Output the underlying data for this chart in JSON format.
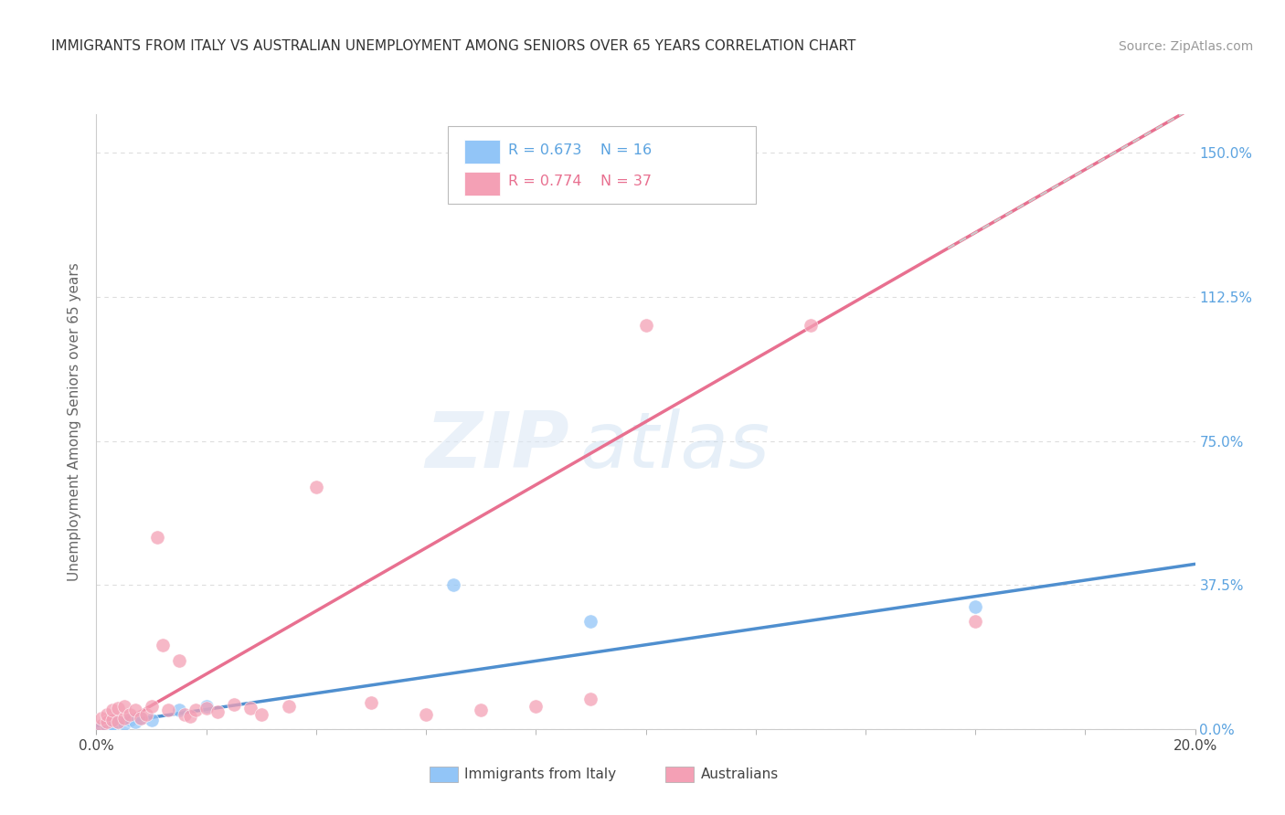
{
  "title": "IMMIGRANTS FROM ITALY VS AUSTRALIAN UNEMPLOYMENT AMONG SENIORS OVER 65 YEARS CORRELATION CHART",
  "source": "Source: ZipAtlas.com",
  "ylabel": "Unemployment Among Seniors over 65 years",
  "xlim": [
    0.0,
    0.2
  ],
  "ylim": [
    0.0,
    1.6
  ],
  "xtick_labels": [
    "0.0%",
    "20.0%"
  ],
  "ytick_labels_right": [
    "0.0%",
    "37.5%",
    "75.0%",
    "112.5%",
    "150.0%"
  ],
  "ytick_vals_right": [
    0.0,
    0.375,
    0.75,
    1.125,
    1.5
  ],
  "legend_label1": "Immigrants from Italy",
  "legend_label2": "Australians",
  "r1": 0.673,
  "n1": 16,
  "r2": 0.774,
  "n2": 37,
  "color1": "#92c5f7",
  "color2": "#f4a0b5",
  "trendline1_color": "#4f8fcf",
  "trendline2_color": "#e87090",
  "trendline2_dashed_color": "#cccccc",
  "scatter1_x": [
    0.001,
    0.002,
    0.002,
    0.003,
    0.003,
    0.004,
    0.005,
    0.006,
    0.007,
    0.008,
    0.01,
    0.015,
    0.02,
    0.065,
    0.09,
    0.16
  ],
  "scatter1_y": [
    0.005,
    0.007,
    0.01,
    0.005,
    0.015,
    0.02,
    0.015,
    0.025,
    0.02,
    0.03,
    0.025,
    0.05,
    0.06,
    0.375,
    0.28,
    0.32
  ],
  "scatter2_x": [
    0.001,
    0.001,
    0.002,
    0.002,
    0.003,
    0.003,
    0.004,
    0.004,
    0.005,
    0.005,
    0.006,
    0.007,
    0.008,
    0.009,
    0.01,
    0.011,
    0.012,
    0.013,
    0.015,
    0.016,
    0.017,
    0.018,
    0.02,
    0.022,
    0.025,
    0.028,
    0.03,
    0.035,
    0.04,
    0.05,
    0.06,
    0.07,
    0.08,
    0.09,
    0.1,
    0.13,
    0.16
  ],
  "scatter2_y": [
    0.01,
    0.03,
    0.02,
    0.04,
    0.025,
    0.05,
    0.02,
    0.055,
    0.03,
    0.06,
    0.04,
    0.05,
    0.03,
    0.04,
    0.06,
    0.5,
    0.22,
    0.05,
    0.18,
    0.04,
    0.035,
    0.05,
    0.055,
    0.045,
    0.065,
    0.055,
    0.04,
    0.06,
    0.63,
    0.07,
    0.04,
    0.05,
    0.06,
    0.08,
    1.05,
    1.05,
    0.28
  ],
  "trendline1_slope": 2.1,
  "trendline1_intercept": 0.01,
  "trendline2_slope": 8.2,
  "trendline2_intercept": -0.02,
  "watermark_zip": "ZIP",
  "watermark_atlas": "atlas",
  "background_color": "#ffffff"
}
